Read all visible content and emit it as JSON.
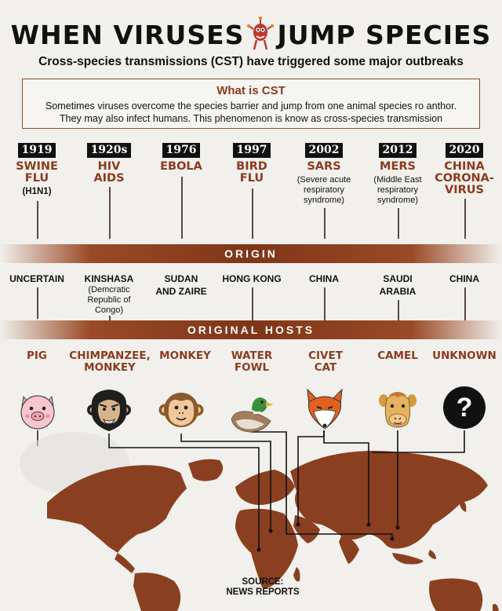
{
  "title_left": "WHEN VIRUSES",
  "title_right": "JUMP SPECIES",
  "subtitle": "Cross-species transmissions (CST) have triggered some major outbreaks",
  "cst_box": {
    "heading": "What is CST",
    "body_line1": "Sometimes viruses overcome the species barrier and jump from one animal species ro anthor.",
    "body_line2": "They may also infect humans. This phenomenon is know as cross-species transmission"
  },
  "bands": {
    "origin": "ORIGIN",
    "hosts": "ORIGINAL HOSTS"
  },
  "outbreaks": [
    {
      "year": "1919",
      "name1": "SWINE",
      "name2": "FLU",
      "note": "(H1N1)",
      "origin": "UNCERTAIN",
      "origin_sub": "",
      "host1": "PIG",
      "host2": "",
      "animal": "pig-icon"
    },
    {
      "year": "1920s",
      "name1": "HIV",
      "name2": "AIDS",
      "note": "",
      "origin": "KINSHASA",
      "origin_sub": "(Demcratic Republic of Congo)",
      "host1": "CHIMPANZEE,",
      "host2": "MONKEY",
      "animal": "chimpanzee-icon"
    },
    {
      "year": "1976",
      "name1": "EBOLA",
      "name2": "",
      "note": "",
      "origin": "SUDAN AND ZAIRE",
      "origin_sub": "",
      "host1": "MONKEY",
      "host2": "",
      "animal": "monkey-icon"
    },
    {
      "year": "1997",
      "name1": "BIRD",
      "name2": "FLU",
      "note": "",
      "origin": "HONG KONG",
      "origin_sub": "",
      "host1": "WATER",
      "host2": "FOWL",
      "animal": "duck-icon"
    },
    {
      "year": "2002",
      "name1": "SARS",
      "name2": "",
      "note": "(Severe acute respiratory syndrome)",
      "origin": "CHINA",
      "origin_sub": "",
      "host1": "CIVET",
      "host2": "CAT",
      "animal": "civet-icon"
    },
    {
      "year": "2012",
      "name1": "MERS",
      "name2": "",
      "note": "(Middle East respiratory syndrome)",
      "origin": "SAUDI ARABIA",
      "origin_sub": "",
      "host1": "CAMEL",
      "host2": "",
      "animal": "camel-icon"
    },
    {
      "year": "2020",
      "name1": "CHINA",
      "name2": "CORONA-",
      "name3": "VIRUS",
      "note": "",
      "origin": "CHINA",
      "origin_sub": "",
      "host1": "UNKNOWN",
      "host2": "",
      "animal": "question-icon"
    }
  ],
  "question_mark": "?",
  "source_line1": "SOURCE:",
  "source_line2": "NEWS REPORTS",
  "colors": {
    "accent": "#8c3b1e",
    "map": "#8a4020",
    "band": "#7e3618",
    "background": "#f1f0ec"
  }
}
